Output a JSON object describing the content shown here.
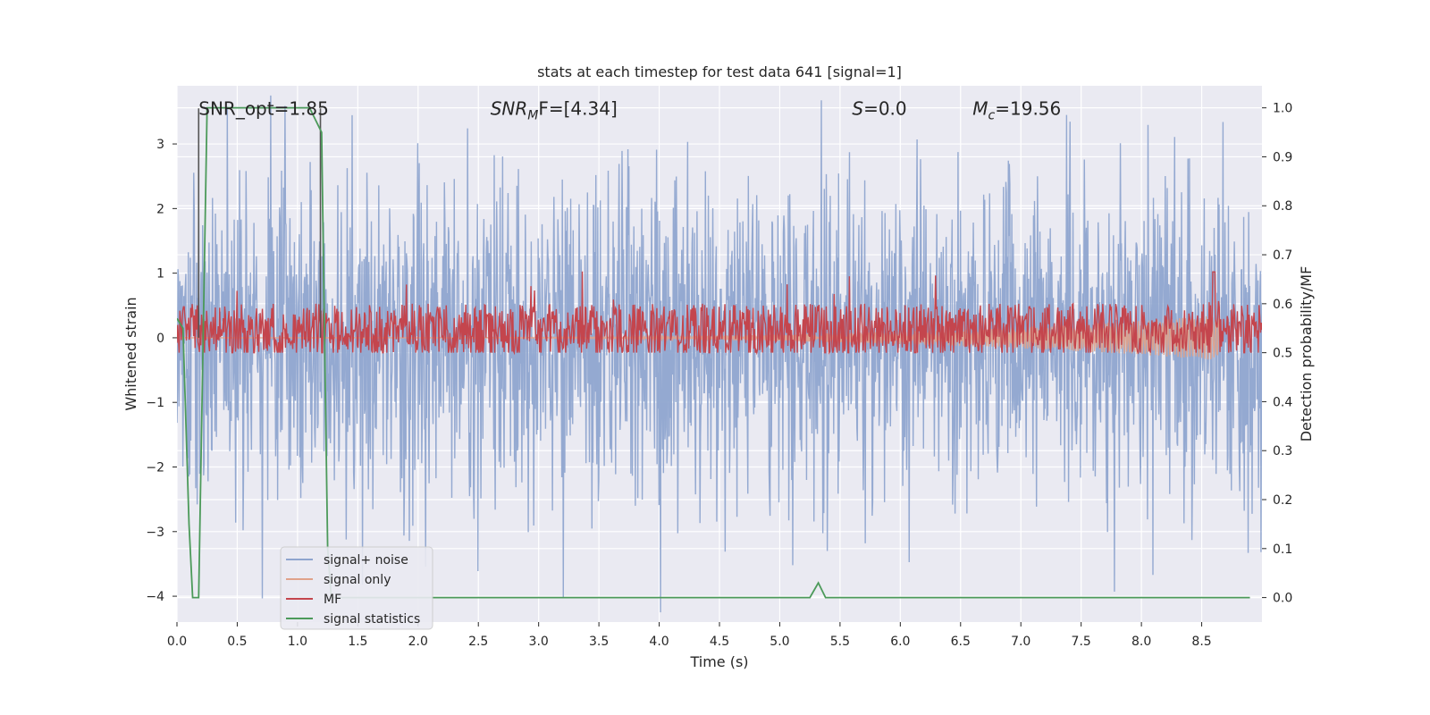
{
  "chart_data": {
    "type": "line",
    "title": "stats at each timestep for test data 641 [signal=1]",
    "xlabel": "Time (s)",
    "ylabel_left": "Whitened strain",
    "ylabel_right": "Detection probability/MF",
    "xlim": [
      0.0,
      9.0
    ],
    "ylim_left": [
      -4.4,
      3.9
    ],
    "ylim_right": [
      -0.05,
      1.045
    ],
    "x_ticks": [
      "0.0",
      "0.5",
      "1.0",
      "1.5",
      "2.0",
      "2.5",
      "3.0",
      "3.5",
      "4.0",
      "4.5",
      "5.0",
      "5.5",
      "6.0",
      "6.5",
      "7.0",
      "7.5",
      "8.0",
      "8.5"
    ],
    "x_tick_values": [
      0.0,
      0.5,
      1.0,
      1.5,
      2.0,
      2.5,
      3.0,
      3.5,
      4.0,
      4.5,
      5.0,
      5.5,
      6.0,
      6.5,
      7.0,
      7.5,
      8.0,
      8.5
    ],
    "y_ticks_left": [
      "3",
      "2",
      "1",
      "0",
      "−1",
      "−2",
      "−3",
      "−4"
    ],
    "y_tick_values_left": [
      3,
      2,
      1,
      0,
      -1,
      -2,
      -3,
      -4
    ],
    "y_ticks_right": [
      "1.0",
      "0.9",
      "0.8",
      "0.7",
      "0.6",
      "0.5",
      "0.4",
      "0.3",
      "0.2",
      "0.1",
      "0.0"
    ],
    "y_tick_values_right": [
      1.0,
      0.9,
      0.8,
      0.7,
      0.6,
      0.5,
      0.4,
      0.3,
      0.2,
      0.1,
      0.0
    ],
    "grid": true,
    "legend_position": "lower-left",
    "annotations": [
      {
        "text": "SNR_opt=1.85",
        "x": 0.18,
        "y": 3.55,
        "style": "normal"
      },
      {
        "text_base": "SNR",
        "text_sub": "M",
        "text_tail": "F=[4.34]",
        "x": 2.6,
        "y": 3.55,
        "style": "italic"
      },
      {
        "text_base": "S",
        "text_sub": "",
        "text_tail": "=0.0",
        "x": 5.6,
        "y": 3.55,
        "style": "italic"
      },
      {
        "text_base": "M",
        "text_sub": "c",
        "text_tail": "=19.56",
        "x": 6.6,
        "y": 3.55,
        "style": "italic"
      }
    ],
    "vertical_lines": [
      {
        "x": 0.18,
        "y_from": 0.0,
        "y_to": 3.55,
        "color": "#555555"
      },
      {
        "x": 1.19,
        "y_from": 0.0,
        "y_to": 3.55,
        "color": "#555555"
      }
    ],
    "series": [
      {
        "name": "signal+ noise",
        "axis": "left",
        "color": "#8fa5cf",
        "kind": "noise-band",
        "seed": 641,
        "n_points": 2200,
        "sigma": 1.0,
        "x_range": [
          0.0,
          9.0
        ]
      },
      {
        "name": "signal only",
        "axis": "left",
        "color": "#e0a28a",
        "kind": "chirp",
        "x_range": [
          0.0,
          8.65
        ],
        "peak_amplitude": 0.35
      },
      {
        "name": "MF",
        "axis": "right",
        "color": "#c4454d",
        "kind": "noisy-level",
        "seed": 99,
        "n_points": 1500,
        "base": 0.545,
        "spread": 0.055,
        "x_range": [
          0.0,
          9.0
        ],
        "peak": {
          "x": 8.6,
          "y": 0.665
        }
      },
      {
        "name": "signal statistics",
        "axis": "right",
        "color": "#4c9a5a",
        "x": [
          0.0,
          0.05,
          0.1,
          0.13,
          0.18,
          0.25,
          0.3,
          0.6,
          0.9,
          1.1,
          1.2,
          1.22,
          1.25,
          1.28,
          1.35,
          2.0,
          3.0,
          4.0,
          5.0,
          5.25,
          5.32,
          5.38,
          6.0,
          7.0,
          8.0,
          8.9
        ],
        "y": [
          0.57,
          0.55,
          0.15,
          0.0,
          0.0,
          1.0,
          1.0,
          1.0,
          1.0,
          1.0,
          0.95,
          0.6,
          0.1,
          0.0,
          0.0,
          0.0,
          0.0,
          0.0,
          0.0,
          0.0,
          0.03,
          0.0,
          0.0,
          0.0,
          0.0,
          0.0
        ]
      }
    ]
  }
}
